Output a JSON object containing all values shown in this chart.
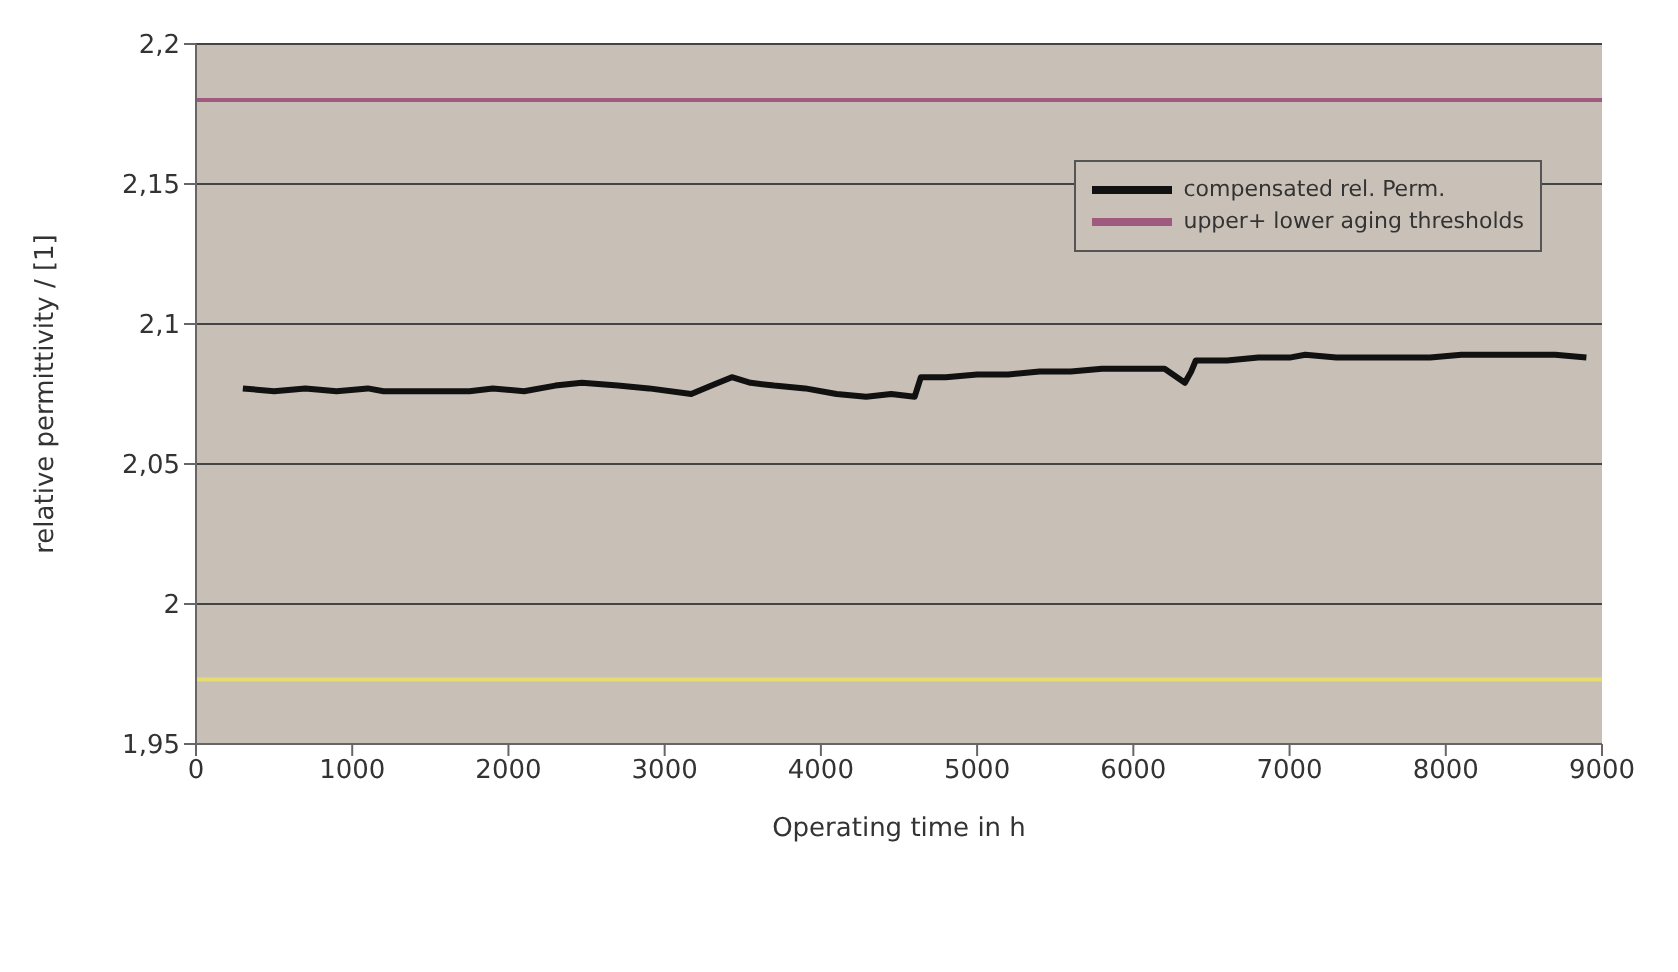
{
  "chart_data": {
    "type": "line",
    "xlabel": "Operating time in h",
    "ylabel": "relative permittivity / [1]",
    "xlim": [
      0,
      9000
    ],
    "xticks": [
      0,
      1000,
      2000,
      3000,
      4000,
      5000,
      6000,
      7000,
      8000,
      9000
    ],
    "ylim": [
      1.95,
      2.2
    ],
    "yticks": [
      {
        "value": 1.95,
        "label": "1,95"
      },
      {
        "value": 2,
        "label": "2"
      },
      {
        "value": 2.05,
        "label": "2,05"
      },
      {
        "value": 2.1,
        "label": "2,1"
      },
      {
        "value": 2.15,
        "label": "2,15"
      },
      {
        "value": 2.2,
        "label": "2,2"
      }
    ],
    "grid": "y",
    "legend": "top right",
    "marker": "none",
    "line_style": "solid",
    "series": [
      {
        "name": "compensated rel. Perm.",
        "color": "#111111",
        "x": [
          300,
          500,
          700,
          900,
          1100,
          1200,
          1750,
          1900,
          2100,
          2300,
          2470,
          2700,
          2900,
          3170,
          3300,
          3430,
          3550,
          3700,
          3900,
          4100,
          4290,
          4450,
          4600,
          4640,
          4800,
          5000,
          5200,
          5400,
          5600,
          5800,
          6000,
          6200,
          6330,
          6370,
          6400,
          6600,
          6800,
          7000,
          7100,
          7300,
          7500,
          7700,
          7900,
          8100,
          8300,
          8500,
          8700,
          8900
        ],
        "values": [
          2.077,
          2.076,
          2.077,
          2.076,
          2.077,
          2.076,
          2.076,
          2.077,
          2.076,
          2.078,
          2.079,
          2.078,
          2.077,
          2.075,
          2.078,
          2.081,
          2.079,
          2.078,
          2.077,
          2.075,
          2.074,
          2.075,
          2.074,
          2.081,
          2.081,
          2.082,
          2.082,
          2.083,
          2.083,
          2.084,
          2.084,
          2.084,
          2.079,
          2.083,
          2.087,
          2.087,
          2.088,
          2.088,
          2.089,
          2.088,
          2.088,
          2.088,
          2.088,
          2.089,
          2.089,
          2.089,
          2.089,
          2.088
        ]
      },
      {
        "name": "upper+ lower aging thresholds",
        "color": "#a05a80",
        "x": [
          0,
          9000
        ],
        "values": [
          2.18,
          2.18
        ]
      },
      {
        "color": "#e6dc70",
        "x": [
          0,
          9000
        ],
        "values": [
          1.973,
          1.973
        ]
      }
    ]
  }
}
